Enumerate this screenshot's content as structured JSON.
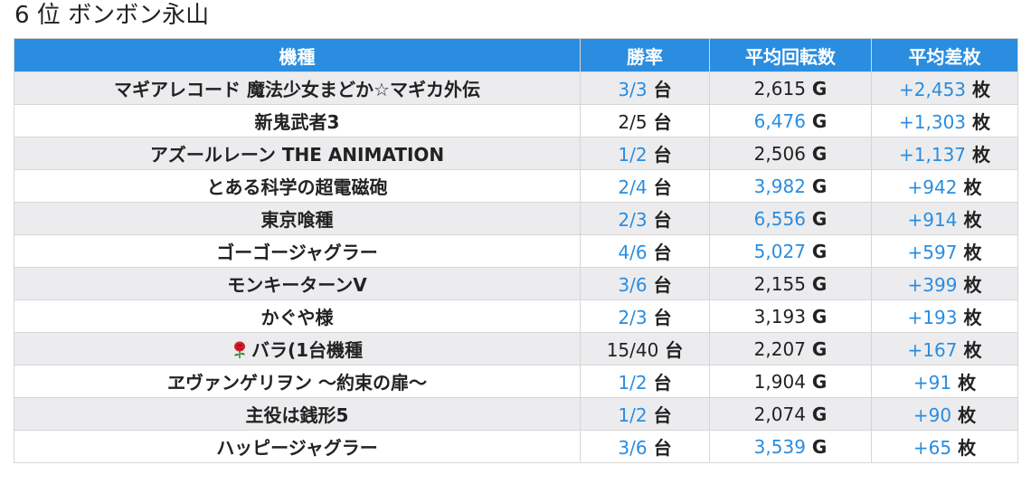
{
  "page_title": "6 位 ボンボン永山",
  "columns": [
    "機種",
    "勝率",
    "平均回転数",
    "平均差枚"
  ],
  "units": {
    "win": "台",
    "spins": "G",
    "diff": "枚"
  },
  "colors": {
    "header_bg": "#2a8de0",
    "link_blue": "#2a8de0",
    "row_alt": "#ececef"
  },
  "rows": [
    {
      "machine": "マギアレコード 魔法少女まどか☆マギカ外伝",
      "win_rate": "3/3",
      "win_blue": true,
      "spins": "2,615",
      "spins_blue": false,
      "diff": "+2,453",
      "diff_blue": true
    },
    {
      "machine": "新鬼武者3",
      "win_rate": "2/5",
      "win_blue": false,
      "spins": "6,476",
      "spins_blue": true,
      "diff": "+1,303",
      "diff_blue": true
    },
    {
      "machine": "アズールレーン THE ANIMATION",
      "win_rate": "1/2",
      "win_blue": true,
      "spins": "2,506",
      "spins_blue": false,
      "diff": "+1,137",
      "diff_blue": true
    },
    {
      "machine": "とある科学の超電磁砲",
      "win_rate": "2/4",
      "win_blue": true,
      "spins": "3,982",
      "spins_blue": true,
      "diff": "+942",
      "diff_blue": true
    },
    {
      "machine": "東京喰種",
      "win_rate": "2/3",
      "win_blue": true,
      "spins": "6,556",
      "spins_blue": true,
      "diff": "+914",
      "diff_blue": true
    },
    {
      "machine": "ゴーゴージャグラー",
      "win_rate": "4/6",
      "win_blue": true,
      "spins": "5,027",
      "spins_blue": true,
      "diff": "+597",
      "diff_blue": true
    },
    {
      "machine": "モンキーターンV",
      "win_rate": "3/6",
      "win_blue": true,
      "spins": "2,155",
      "spins_blue": false,
      "diff": "+399",
      "diff_blue": true
    },
    {
      "machine": "かぐや様",
      "win_rate": "2/3",
      "win_blue": true,
      "spins": "3,193",
      "spins_blue": false,
      "diff": "+193",
      "diff_blue": true
    },
    {
      "machine": "バラ(1台機種",
      "icon": "rose-icon",
      "win_rate": "15/40",
      "win_blue": false,
      "spins": "2,207",
      "spins_blue": false,
      "diff": "+167",
      "diff_blue": true
    },
    {
      "machine": "ヱヴァンゲリヲン ～約束の扉～",
      "win_rate": "1/2",
      "win_blue": true,
      "spins": "1,904",
      "spins_blue": false,
      "diff": "+91",
      "diff_blue": true
    },
    {
      "machine": "主役は銭形5",
      "win_rate": "1/2",
      "win_blue": true,
      "spins": "2,074",
      "spins_blue": false,
      "diff": "+90",
      "diff_blue": true
    },
    {
      "machine": "ハッピージャグラー",
      "win_rate": "3/6",
      "win_blue": true,
      "spins": "3,539",
      "spins_blue": true,
      "diff": "+65",
      "diff_blue": true
    }
  ]
}
